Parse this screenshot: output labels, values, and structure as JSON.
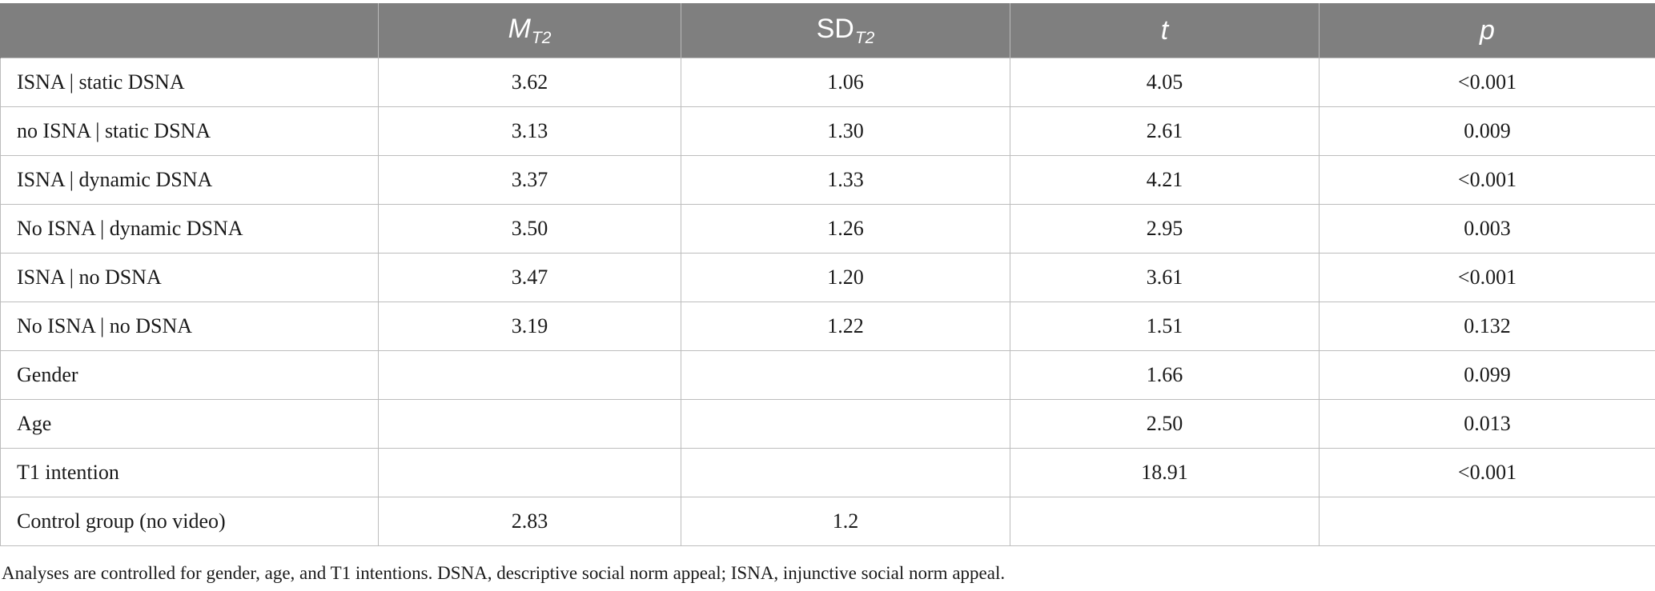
{
  "table": {
    "headers": {
      "row_label": "",
      "mean": {
        "symbol": "M",
        "subscript": "T2"
      },
      "sd": {
        "symbol": "SD",
        "subscript": "T2"
      },
      "t": "t",
      "p": "p"
    },
    "rows": [
      {
        "label": "ISNA | static DSNA",
        "m": "3.62",
        "sd": "1.06",
        "t": "4.05",
        "p": "<0.001"
      },
      {
        "label": "no ISNA | static DSNA",
        "m": "3.13",
        "sd": "1.30",
        "t": "2.61",
        "p": "0.009"
      },
      {
        "label": "ISNA | dynamic DSNA",
        "m": "3.37",
        "sd": "1.33",
        "t": "4.21",
        "p": "<0.001"
      },
      {
        "label": "No ISNA | dynamic DSNA",
        "m": "3.50",
        "sd": "1.26",
        "t": "2.95",
        "p": "0.003"
      },
      {
        "label": "ISNA | no DSNA",
        "m": "3.47",
        "sd": "1.20",
        "t": "3.61",
        "p": "<0.001"
      },
      {
        "label": "No ISNA | no DSNA",
        "m": "3.19",
        "sd": "1.22",
        "t": "1.51",
        "p": "0.132"
      },
      {
        "label": "Gender",
        "m": "",
        "sd": "",
        "t": "1.66",
        "p": "0.099"
      },
      {
        "label": "Age",
        "m": "",
        "sd": "",
        "t": "2.50",
        "p": "0.013"
      },
      {
        "label": "T1 intention",
        "m": "",
        "sd": "",
        "t": "18.91",
        "p": "<0.001"
      },
      {
        "label": "Control group (no video)",
        "m": "2.83",
        "sd": "1.2",
        "t": "",
        "p": ""
      }
    ]
  },
  "footnote": "Analyses are controlled for gender, age, and T1 intentions. DSNA, descriptive social norm appeal; ISNA, injunctive social norm appeal.",
  "colors": {
    "header_bg": "#7f7f7f",
    "header_text": "#ffffff",
    "grid_line": "#bdbdbd"
  }
}
